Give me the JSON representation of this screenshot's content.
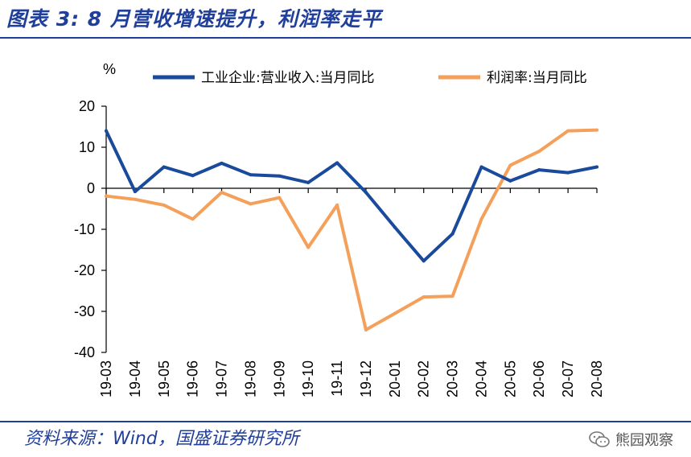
{
  "header": {
    "title": "图表 3:  8 月营收增速提升，利润率走平"
  },
  "footer": {
    "source": "资料来源：Wind，国盛证券研究所",
    "watermark": "熊园观察",
    "watermark_icon": "wechat-icon"
  },
  "colors": {
    "accent": "#1f3f9a",
    "series_revenue": "#1a4a9c",
    "series_margin": "#f5a05a"
  },
  "chart_data": {
    "type": "line",
    "ylabel": "%",
    "ylim": [
      -40,
      20
    ],
    "yticks": [
      20,
      10,
      0,
      -10,
      -20,
      -30,
      -40
    ],
    "grid": false,
    "legend_position": "top",
    "categories": [
      "19-03",
      "19-04",
      "19-05",
      "19-06",
      "19-07",
      "19-08",
      "19-09",
      "19-10",
      "19-11",
      "19-12",
      "20-01",
      "20-02",
      "20-03",
      "20-04",
      "20-05",
      "20-06",
      "20-07",
      "20-08"
    ],
    "series": [
      {
        "name": "工业企业:营业收入:当月同比",
        "color": "#1a4a9c",
        "values": [
          14.0,
          -0.8,
          5.2,
          3.1,
          6.1,
          3.3,
          3.0,
          1.4,
          6.2,
          -1.0,
          -9.5,
          -17.7,
          -11.1,
          5.2,
          1.8,
          4.5,
          3.8,
          5.2
        ]
      },
      {
        "name": "利润率:当月同比",
        "color": "#f5a05a",
        "values": [
          -1.9,
          -2.7,
          -4.1,
          -7.5,
          -1.0,
          -3.8,
          -2.3,
          -14.4,
          -4.1,
          -34.5,
          -30.5,
          -26.5,
          -26.3,
          -7.5,
          5.6,
          9.0,
          14.0,
          14.2
        ]
      }
    ]
  }
}
